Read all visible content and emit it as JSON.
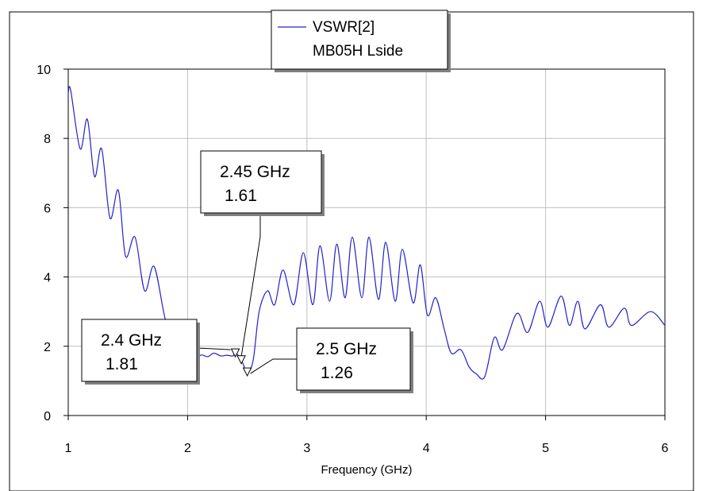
{
  "chart_data": {
    "type": "line",
    "title": "",
    "xlabel": "Frequency (GHz)",
    "ylabel": "",
    "xlim": [
      1,
      6
    ],
    "ylim": [
      0,
      10
    ],
    "x_ticks": [
      "1",
      "2",
      "3",
      "4",
      "5",
      "6"
    ],
    "y_ticks": [
      "0",
      "2",
      "4",
      "6",
      "8",
      "10"
    ],
    "grid": true,
    "legend": {
      "placement": "top-center",
      "entries": [
        "VSWR[2]",
        "MB05H Lside"
      ]
    },
    "series": [
      {
        "name": "VSWR[2]",
        "color": "#2222cc",
        "x": [
          1.0,
          1.02,
          1.1,
          1.16,
          1.22,
          1.28,
          1.35,
          1.42,
          1.48,
          1.56,
          1.64,
          1.72,
          1.82,
          1.9,
          1.96,
          2.02,
          2.08,
          2.12,
          2.17,
          2.22,
          2.28,
          2.33,
          2.38,
          2.4,
          2.45,
          2.5,
          2.55,
          2.6,
          2.67,
          2.73,
          2.8,
          2.89,
          2.97,
          3.05,
          3.11,
          3.19,
          3.25,
          3.32,
          3.38,
          3.46,
          3.52,
          3.6,
          3.66,
          3.74,
          3.8,
          3.89,
          3.95,
          4.01,
          4.08,
          4.15,
          4.21,
          4.29,
          4.36,
          4.42,
          4.49,
          4.57,
          4.64,
          4.76,
          4.85,
          4.95,
          5.02,
          5.13,
          5.2,
          5.27,
          5.33,
          5.46,
          5.53,
          5.66,
          5.72,
          5.88,
          6.0
        ],
        "values": [
          9.3,
          9.4,
          7.7,
          8.55,
          6.9,
          7.7,
          5.7,
          6.5,
          4.6,
          5.15,
          3.6,
          4.3,
          2.7,
          2.6,
          1.95,
          2.0,
          1.72,
          1.75,
          1.7,
          1.8,
          1.72,
          1.74,
          1.72,
          1.81,
          1.61,
          1.26,
          1.6,
          3.0,
          3.6,
          3.2,
          4.2,
          3.2,
          4.7,
          3.2,
          4.9,
          3.3,
          4.95,
          3.4,
          5.15,
          3.4,
          5.15,
          3.35,
          5.0,
          3.3,
          4.8,
          3.25,
          4.35,
          2.9,
          3.4,
          2.5,
          1.8,
          1.9,
          1.4,
          1.2,
          1.12,
          2.25,
          1.9,
          2.95,
          2.4,
          3.3,
          2.55,
          3.45,
          2.6,
          3.3,
          2.5,
          3.2,
          2.55,
          3.1,
          2.6,
          3.0,
          2.6
        ]
      }
    ],
    "markers": [
      {
        "freq": "2.45 GHz",
        "value": "1.61",
        "x": 2.45,
        "y": 1.61
      },
      {
        "freq": "2.4 GHz",
        "value": "1.81",
        "x": 2.4,
        "y": 1.81
      },
      {
        "freq": "2.5 GHz",
        "value": "1.26",
        "x": 2.5,
        "y": 1.26
      }
    ]
  }
}
